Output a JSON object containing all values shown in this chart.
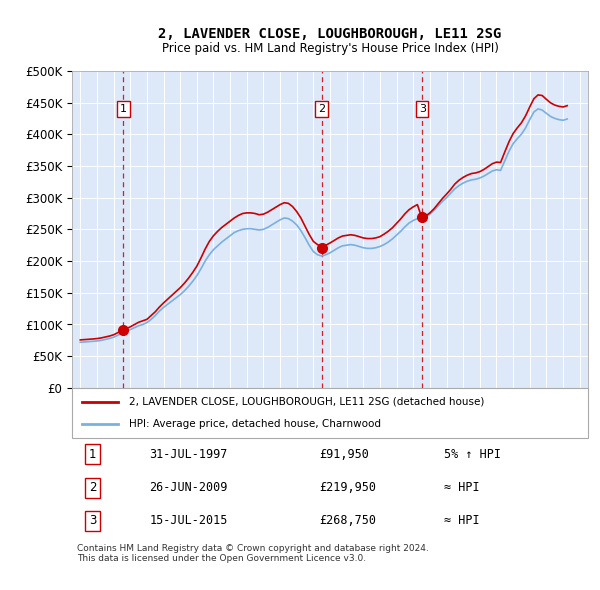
{
  "title": "2, LAVENDER CLOSE, LOUGHBOROUGH, LE11 2SG",
  "subtitle": "Price paid vs. HM Land Registry's House Price Index (HPI)",
  "background_color": "#dde8f8",
  "plot_bg_color": "#dde8f8",
  "ylim": [
    0,
    500000
  ],
  "yticks": [
    0,
    50000,
    100000,
    150000,
    200000,
    250000,
    300000,
    350000,
    400000,
    450000,
    500000
  ],
  "ytick_labels": [
    "£0",
    "£50K",
    "£100K",
    "£150K",
    "£200K",
    "£250K",
    "£300K",
    "£350K",
    "£400K",
    "£450K",
    "£500K"
  ],
  "sale_dates": [
    1997.58,
    2009.49,
    2015.54
  ],
  "sale_prices": [
    91950,
    219950,
    268750
  ],
  "sale_labels": [
    "1",
    "2",
    "3"
  ],
  "hpi_line_color": "#7ab0e0",
  "price_line_color": "#cc0000",
  "sale_dot_color": "#cc0000",
  "dashed_line_color": "#cc0000",
  "legend_line1": "2, LAVENDER CLOSE, LOUGHBOROUGH, LE11 2SG (detached house)",
  "legend_line2": "HPI: Average price, detached house, Charnwood",
  "table_rows": [
    {
      "num": "1",
      "date": "31-JUL-1997",
      "price": "£91,950",
      "relation": "5% ↑ HPI"
    },
    {
      "num": "2",
      "date": "26-JUN-2009",
      "price": "£219,950",
      "relation": "≈ HPI"
    },
    {
      "num": "3",
      "date": "15-JUL-2015",
      "price": "£268,750",
      "relation": "≈ HPI"
    }
  ],
  "footer": "Contains HM Land Registry data © Crown copyright and database right 2024.\nThis data is licensed under the Open Government Licence v3.0.",
  "hpi_data": {
    "years": [
      1995.0,
      1995.25,
      1995.5,
      1995.75,
      1996.0,
      1996.25,
      1996.5,
      1996.75,
      1997.0,
      1997.25,
      1997.5,
      1997.75,
      1998.0,
      1998.25,
      1998.5,
      1998.75,
      1999.0,
      1999.25,
      1999.5,
      1999.75,
      2000.0,
      2000.25,
      2000.5,
      2000.75,
      2001.0,
      2001.25,
      2001.5,
      2001.75,
      2002.0,
      2002.25,
      2002.5,
      2002.75,
      2003.0,
      2003.25,
      2003.5,
      2003.75,
      2004.0,
      2004.25,
      2004.5,
      2004.75,
      2005.0,
      2005.25,
      2005.5,
      2005.75,
      2006.0,
      2006.25,
      2006.5,
      2006.75,
      2007.0,
      2007.25,
      2007.5,
      2007.75,
      2008.0,
      2008.25,
      2008.5,
      2008.75,
      2009.0,
      2009.25,
      2009.5,
      2009.75,
      2010.0,
      2010.25,
      2010.5,
      2010.75,
      2011.0,
      2011.25,
      2011.5,
      2011.75,
      2012.0,
      2012.25,
      2012.5,
      2012.75,
      2013.0,
      2013.25,
      2013.5,
      2013.75,
      2014.0,
      2014.25,
      2014.5,
      2014.75,
      2015.0,
      2015.25,
      2015.5,
      2015.75,
      2016.0,
      2016.25,
      2016.5,
      2016.75,
      2017.0,
      2017.25,
      2017.5,
      2017.75,
      2018.0,
      2018.25,
      2018.5,
      2018.75,
      2019.0,
      2019.25,
      2019.5,
      2019.75,
      2020.0,
      2020.25,
      2020.5,
      2020.75,
      2021.0,
      2021.25,
      2021.5,
      2021.75,
      2022.0,
      2022.25,
      2022.5,
      2022.75,
      2023.0,
      2023.25,
      2023.5,
      2023.75,
      2024.0,
      2024.25
    ],
    "values": [
      72000,
      72500,
      73000,
      73500,
      74000,
      75000,
      76500,
      78000,
      80000,
      83000,
      86000,
      89000,
      92000,
      95000,
      98000,
      100000,
      103000,
      108000,
      114000,
      121000,
      127000,
      132000,
      137000,
      142000,
      147000,
      153000,
      160000,
      168000,
      177000,
      188000,
      200000,
      210000,
      218000,
      224000,
      230000,
      235000,
      240000,
      245000,
      248000,
      250000,
      251000,
      251000,
      250000,
      249000,
      250000,
      253000,
      257000,
      261000,
      265000,
      268000,
      267000,
      263000,
      257000,
      248000,
      237000,
      225000,
      215000,
      210000,
      208000,
      210000,
      213000,
      217000,
      221000,
      224000,
      225000,
      226000,
      225000,
      223000,
      221000,
      220000,
      220000,
      221000,
      223000,
      226000,
      230000,
      235000,
      241000,
      247000,
      254000,
      260000,
      264000,
      267000,
      268000,
      270000,
      274000,
      280000,
      287000,
      294000,
      300000,
      307000,
      314000,
      319000,
      323000,
      326000,
      328000,
      329000,
      331000,
      334000,
      338000,
      342000,
      344000,
      343000,
      358000,
      373000,
      385000,
      393000,
      400000,
      410000,
      423000,
      435000,
      440000,
      438000,
      433000,
      428000,
      425000,
      423000,
      422000,
      424000
    ]
  },
  "price_paid_data": {
    "years": [
      1995.0,
      1995.25,
      1995.5,
      1995.75,
      1996.0,
      1996.25,
      1996.5,
      1996.75,
      1997.0,
      1997.25,
      1997.5,
      1997.75,
      1998.0,
      1998.25,
      1998.5,
      1998.75,
      1999.0,
      1999.25,
      1999.5,
      1999.75,
      2000.0,
      2000.25,
      2000.5,
      2000.75,
      2001.0,
      2001.25,
      2001.5,
      2001.75,
      2002.0,
      2002.25,
      2002.5,
      2002.75,
      2003.0,
      2003.25,
      2003.5,
      2003.75,
      2004.0,
      2004.25,
      2004.5,
      2004.75,
      2005.0,
      2005.25,
      2005.5,
      2005.75,
      2006.0,
      2006.25,
      2006.5,
      2006.75,
      2007.0,
      2007.25,
      2007.5,
      2007.75,
      2008.0,
      2008.25,
      2008.5,
      2008.75,
      2009.0,
      2009.25,
      2009.5,
      2009.75,
      2010.0,
      2010.25,
      2010.5,
      2010.75,
      2011.0,
      2011.25,
      2011.5,
      2011.75,
      2012.0,
      2012.25,
      2012.5,
      2012.75,
      2013.0,
      2013.25,
      2013.5,
      2013.75,
      2014.0,
      2014.25,
      2014.5,
      2014.75,
      2015.0,
      2015.25,
      2015.5,
      2015.75,
      2016.0,
      2016.25,
      2016.5,
      2016.75,
      2017.0,
      2017.25,
      2017.5,
      2017.75,
      2018.0,
      2018.25,
      2018.5,
      2018.75,
      2019.0,
      2019.25,
      2019.5,
      2019.75,
      2020.0,
      2020.25,
      2020.5,
      2020.75,
      2021.0,
      2021.25,
      2021.5,
      2021.75,
      2022.0,
      2022.25,
      2022.5,
      2022.75,
      2023.0,
      2023.25,
      2023.5,
      2023.75,
      2024.0,
      2024.25
    ],
    "values": [
      75700,
      76200,
      76700,
      77200,
      77800,
      78800,
      80300,
      81800,
      83800,
      87100,
      90400,
      93300,
      96300,
      99900,
      103500,
      105800,
      108100,
      114000,
      120000,
      127500,
      134000,
      140000,
      146000,
      152000,
      158000,
      165000,
      173000,
      182000,
      192000,
      205000,
      219000,
      231000,
      240000,
      247000,
      253000,
      258000,
      263000,
      268000,
      272000,
      275000,
      276000,
      276000,
      275000,
      273000,
      274000,
      277000,
      281000,
      285000,
      289000,
      292000,
      291000,
      286000,
      278000,
      268000,
      255000,
      242000,
      231000,
      226000,
      222500,
      225000,
      228500,
      232500,
      236500,
      239500,
      240500,
      241500,
      240500,
      238500,
      236500,
      235500,
      235500,
      236500,
      238500,
      242500,
      247000,
      252500,
      259500,
      266500,
      274500,
      281000,
      285500,
      289000,
      269500,
      271000,
      276000,
      282500,
      290500,
      298500,
      305500,
      313000,
      321500,
      327500,
      332000,
      335500,
      338000,
      339000,
      341000,
      344500,
      349000,
      353500,
      356000,
      355500,
      372000,
      388000,
      401000,
      410000,
      418000,
      429000,
      443000,
      456000,
      462000,
      461000,
      455000,
      449500,
      446000,
      444000,
      443000,
      445000
    ]
  },
  "xlim": [
    1994.5,
    2025.5
  ],
  "xticks": [
    1995,
    1996,
    1997,
    1998,
    1999,
    2000,
    2001,
    2002,
    2003,
    2004,
    2005,
    2006,
    2007,
    2008,
    2009,
    2010,
    2011,
    2012,
    2013,
    2014,
    2015,
    2016,
    2017,
    2018,
    2019,
    2020,
    2021,
    2022,
    2023,
    2024,
    2025
  ]
}
